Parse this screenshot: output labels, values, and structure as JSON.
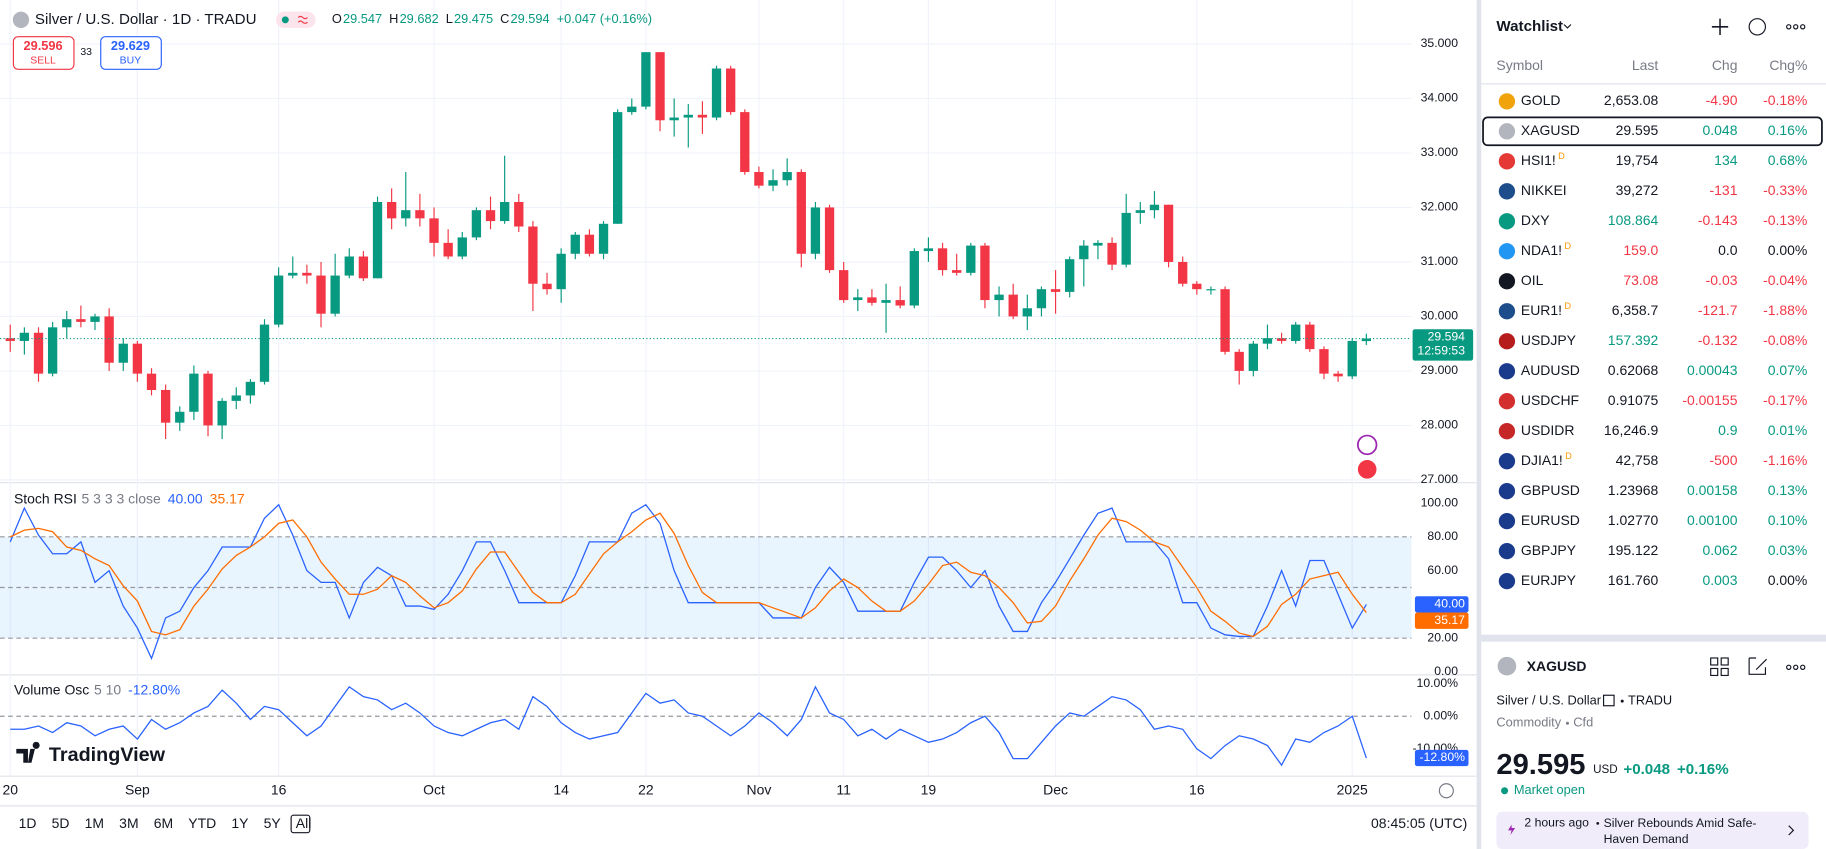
{
  "header": {
    "title": "Silver / U.S. Dollar · 1D · TRADU",
    "ohlc": [
      {
        "key": "O",
        "value": "29.547"
      },
      {
        "key": "H",
        "value": "29.682"
      },
      {
        "key": "L",
        "value": "29.475"
      },
      {
        "key": "C",
        "value": "29.594"
      }
    ],
    "change": "+0.047 (+0.16%)"
  },
  "trade": {
    "sell_price": "29.596",
    "sell": "SELL",
    "spread": "33",
    "buy_price": "29.629",
    "buy": "BUY"
  },
  "logo": "TradingView",
  "chart_data": [
    {
      "type": "candlestick",
      "up_color": "#089981",
      "down_color": "#f23645",
      "grid": true,
      "categories": [
        "20",
        null,
        null,
        null,
        null,
        null,
        null,
        null,
        null,
        "Sep",
        null,
        null,
        null,
        null,
        null,
        null,
        null,
        null,
        null,
        "16",
        null,
        null,
        null,
        null,
        null,
        null,
        null,
        null,
        null,
        null,
        "Oct",
        null,
        null,
        null,
        null,
        null,
        null,
        null,
        null,
        "14",
        null,
        null,
        null,
        null,
        null,
        "22",
        null,
        null,
        null,
        null,
        null,
        null,
        null,
        "Nov",
        null,
        null,
        null,
        null,
        null,
        "11",
        null,
        null,
        null,
        null,
        null,
        "19",
        null,
        null,
        null,
        null,
        null,
        null,
        null,
        null,
        "Dec",
        null,
        null,
        null,
        null,
        null,
        null,
        null,
        null,
        null,
        "16",
        null,
        null,
        null,
        null,
        null,
        null,
        null,
        null,
        null,
        null,
        "2025",
        null
      ],
      "open": [
        29.6,
        29.55,
        29.7,
        28.95,
        29.8,
        29.95,
        29.9,
        30.0,
        29.15,
        29.5,
        28.95,
        28.65,
        28.05,
        28.25,
        28.95,
        28.0,
        28.45,
        28.55,
        28.8,
        29.85,
        30.75,
        30.8,
        30.75,
        30.05,
        30.75,
        31.1,
        30.7,
        32.1,
        31.8,
        31.95,
        31.8,
        31.35,
        31.1,
        31.45,
        31.95,
        31.75,
        32.1,
        31.65,
        30.6,
        30.5,
        31.15,
        31.5,
        31.15,
        31.7,
        33.75,
        33.85,
        34.85,
        33.6,
        33.65,
        33.7,
        33.65,
        34.55,
        33.75,
        32.65,
        32.4,
        32.5,
        32.65,
        31.15,
        32.0,
        30.85,
        30.3,
        30.35,
        30.25,
        30.3,
        30.2,
        31.2,
        31.25,
        30.85,
        30.8,
        31.3,
        30.3,
        30.4,
        30.0,
        30.15,
        30.5,
        30.45,
        31.05,
        31.3,
        31.35,
        30.95,
        31.9,
        31.95,
        32.05,
        31.0,
        30.6,
        30.5,
        30.5,
        29.35,
        29.0,
        29.5,
        29.6,
        29.55,
        29.85,
        29.4,
        28.95,
        28.9,
        29.547
      ],
      "high": [
        29.85,
        29.8,
        29.8,
        29.9,
        30.1,
        30.2,
        30.05,
        30.15,
        29.6,
        29.55,
        29.05,
        28.75,
        28.35,
        29.1,
        29.0,
        28.5,
        28.7,
        28.85,
        29.95,
        30.9,
        31.1,
        30.95,
        31.0,
        31.15,
        31.25,
        31.2,
        32.2,
        32.35,
        32.65,
        32.25,
        32.0,
        31.6,
        31.55,
        32.0,
        32.2,
        32.95,
        32.25,
        31.75,
        30.8,
        31.25,
        31.55,
        31.6,
        31.75,
        33.8,
        34.0,
        34.85,
        34.85,
        34.0,
        33.9,
        33.95,
        34.6,
        34.6,
        33.8,
        32.75,
        32.7,
        32.9,
        32.7,
        32.1,
        32.05,
        31.0,
        30.5,
        30.5,
        30.6,
        30.55,
        31.25,
        31.45,
        31.35,
        31.15,
        31.35,
        31.35,
        30.55,
        30.6,
        30.4,
        30.55,
        30.85,
        31.1,
        31.4,
        31.4,
        31.45,
        32.25,
        32.1,
        32.3,
        32.05,
        31.1,
        30.65,
        30.55,
        30.55,
        29.4,
        29.55,
        29.85,
        29.7,
        29.9,
        29.9,
        29.45,
        29.0,
        29.6,
        29.682
      ],
      "low": [
        29.35,
        29.3,
        28.8,
        28.9,
        29.6,
        29.8,
        29.75,
        29.0,
        29.0,
        28.8,
        28.55,
        27.75,
        27.9,
        28.1,
        27.8,
        27.75,
        28.3,
        28.4,
        28.75,
        29.8,
        30.7,
        30.6,
        29.8,
        30.0,
        30.7,
        30.65,
        30.7,
        31.6,
        31.65,
        31.65,
        31.1,
        31.05,
        31.05,
        31.4,
        31.6,
        31.7,
        31.55,
        30.1,
        30.4,
        30.25,
        31.05,
        31.1,
        31.05,
        31.7,
        33.7,
        33.8,
        33.4,
        33.3,
        33.1,
        33.35,
        33.6,
        33.7,
        32.6,
        32.35,
        32.3,
        32.4,
        30.9,
        31.05,
        30.8,
        30.25,
        30.1,
        30.2,
        29.7,
        30.15,
        30.15,
        31.0,
        30.75,
        30.75,
        30.75,
        30.15,
        30.0,
        29.95,
        29.75,
        30.0,
        30.05,
        30.35,
        30.55,
        31.05,
        30.85,
        30.9,
        31.7,
        31.8,
        30.9,
        30.55,
        30.4,
        30.4,
        29.3,
        28.75,
        28.9,
        29.4,
        29.5,
        29.5,
        29.35,
        28.85,
        28.8,
        28.85,
        29.475
      ],
      "close": [
        29.55,
        29.7,
        28.95,
        29.8,
        29.95,
        29.9,
        30.0,
        29.15,
        29.5,
        28.95,
        28.65,
        28.05,
        28.25,
        28.95,
        28.0,
        28.45,
        28.55,
        28.8,
        29.85,
        30.75,
        30.8,
        30.75,
        30.05,
        30.75,
        31.1,
        30.7,
        32.1,
        31.8,
        31.95,
        31.8,
        31.35,
        31.1,
        31.45,
        31.95,
        31.75,
        32.1,
        31.65,
        30.6,
        30.5,
        31.15,
        31.5,
        31.15,
        31.7,
        33.75,
        33.85,
        34.85,
        33.6,
        33.65,
        33.7,
        33.65,
        34.55,
        33.75,
        32.65,
        32.4,
        32.5,
        32.65,
        31.15,
        32.0,
        30.85,
        30.3,
        30.35,
        30.25,
        30.3,
        30.2,
        31.2,
        31.25,
        30.85,
        30.8,
        31.3,
        30.3,
        30.4,
        30.0,
        30.15,
        30.5,
        30.45,
        31.05,
        31.3,
        31.35,
        30.95,
        31.9,
        31.95,
        32.05,
        31.0,
        30.6,
        30.5,
        30.5,
        29.35,
        29.0,
        29.5,
        29.6,
        29.55,
        29.85,
        29.4,
        28.95,
        28.9,
        29.55,
        29.594
      ],
      "ylim": [
        26.98,
        35.7
      ],
      "yticks": [
        {
          "value": 27,
          "label": "27.000"
        },
        {
          "value": 28,
          "label": "28.000"
        },
        {
          "value": 29,
          "label": "29.000"
        },
        {
          "value": 30,
          "label": "30.000"
        },
        {
          "value": 31,
          "label": "31.000"
        },
        {
          "value": 32,
          "label": "32.000"
        },
        {
          "value": 33,
          "label": "33.000"
        },
        {
          "value": 34,
          "label": "34.000"
        },
        {
          "value": 35,
          "label": "35.000"
        }
      ],
      "price_tag": "29.594",
      "countdown": "12:59:53"
    },
    {
      "type": "line",
      "title": "Stoch RSI",
      "params": "5 3 3 3 close",
      "ylim": [
        -1.4,
        111
      ],
      "yticks": [
        {
          "value": 0,
          "label": "0.00"
        },
        {
          "value": 20,
          "label": "20.00"
        },
        {
          "value": 60,
          "label": "60.00"
        },
        {
          "value": 80,
          "label": "80.00"
        },
        {
          "value": 100,
          "label": "100.00"
        }
      ],
      "band": [
        20,
        80
      ],
      "hlines": [
        80,
        50,
        20
      ],
      "series": [
        {
          "name": "K",
          "color": "#2962ff",
          "legend_value": "40.00",
          "values": [
            77,
            97,
            81,
            70,
            70,
            77,
            53,
            60,
            39,
            26,
            8,
            32,
            36,
            50,
            60,
            74,
            74,
            74,
            91,
            99,
            81,
            60,
            53,
            53,
            32,
            53,
            62,
            57,
            39,
            39,
            37,
            46,
            60,
            77,
            77,
            60,
            41,
            41,
            41,
            41,
            57,
            77,
            77,
            77,
            94,
            99,
            88,
            60,
            41,
            41,
            41,
            41,
            41,
            41,
            32,
            32,
            32,
            50,
            62,
            53,
            36,
            36,
            36,
            36,
            53,
            68,
            68,
            60,
            50,
            60,
            39,
            24,
            24,
            41,
            53,
            67,
            81,
            94,
            97,
            77,
            77,
            77,
            67,
            41,
            41,
            26,
            22,
            21,
            21,
            39,
            60,
            39,
            66,
            66,
            46,
            26,
            40
          ]
        },
        {
          "name": "D",
          "color": "#ff6d00",
          "legend_value": "35.17",
          "values": [
            80,
            84,
            85,
            83,
            74,
            72,
            67,
            63,
            51,
            42,
            24,
            22,
            25,
            39,
            49,
            61,
            69,
            74,
            80,
            88,
            90,
            80,
            65,
            55,
            46,
            46,
            49,
            57,
            53,
            45,
            38,
            41,
            48,
            61,
            71,
            71,
            59,
            47,
            41,
            41,
            46,
            58,
            70,
            77,
            83,
            90,
            94,
            82,
            63,
            47,
            41,
            41,
            41,
            41,
            38,
            35,
            32,
            38,
            48,
            55,
            50,
            42,
            36,
            36,
            42,
            52,
            63,
            65,
            59,
            57,
            50,
            41,
            29,
            30,
            39,
            54,
            67,
            81,
            91,
            89,
            84,
            77,
            74,
            62,
            50,
            36,
            30,
            23,
            21,
            27,
            40,
            46,
            55,
            57,
            59,
            46,
            35.17
          ]
        }
      ]
    },
    {
      "type": "line",
      "title": "Volume Osc",
      "params": "5 10",
      "ylim": [
        -18.2,
        12.5
      ],
      "yticks": [
        {
          "value": -10,
          "label": "-10.00%"
        },
        {
          "value": 0,
          "label": "0.00%"
        },
        {
          "value": 10,
          "label": "10.00%"
        }
      ],
      "hlines": [
        0
      ],
      "series": [
        {
          "name": "Volume Osc",
          "color": "#2962ff",
          "legend_value": "-12.80%",
          "values": [
            -4,
            -4,
            -3,
            -5,
            -2,
            -3,
            -6,
            -4,
            -3,
            -7,
            -1,
            -4,
            -2,
            1,
            3,
            8,
            4,
            -1,
            3,
            2,
            -2,
            -6,
            -3,
            3,
            9,
            6,
            5,
            2,
            4,
            1,
            -3,
            -5,
            -6,
            -4,
            -2,
            -1,
            -4,
            6,
            3,
            -2,
            -5,
            -7,
            -6,
            -5,
            1,
            7,
            4,
            5,
            1,
            0,
            -3,
            -6,
            -3,
            1,
            -2,
            -6,
            -1,
            9,
            1,
            -1,
            -6,
            -4,
            -7,
            -4,
            -6,
            -8,
            -7,
            -5,
            -2,
            0,
            -5,
            -13,
            -13,
            -8,
            -3,
            1,
            0,
            3,
            6,
            5,
            2,
            -4,
            -3,
            -4,
            -10,
            -13,
            -9,
            -6,
            -7,
            -9,
            -15,
            -7,
            -8,
            -5,
            -3,
            0,
            -12.8
          ]
        }
      ]
    }
  ],
  "toolbar": {
    "ranges": [
      "1D",
      "5D",
      "1M",
      "3M",
      "6M",
      "YTD",
      "1Y",
      "5Y",
      "All"
    ],
    "clock": "08:45:05 (UTC)"
  },
  "watchlist": {
    "title": "Watchlist",
    "columns": [
      "Symbol",
      "Last",
      "Chg",
      "Chg%"
    ],
    "selected": 1,
    "rows": [
      {
        "symbol": "GOLD",
        "last": "2,653.08",
        "chg": "-4.90",
        "chg_pct": "-0.18%",
        "icon": "#f0a30a",
        "color": "#131722"
      },
      {
        "symbol": "XAGUSD",
        "last": "29.595",
        "chg": "0.048",
        "chg_pct": "0.16%",
        "icon": "#b2b5be",
        "color": "#131722"
      },
      {
        "symbol": "HSI1!",
        "flag": "D",
        "last": "19,754",
        "chg": "134",
        "chg_pct": "0.68%",
        "icon": "#e53935",
        "color": "#131722"
      },
      {
        "symbol": "NIKKEI",
        "last": "39,272",
        "chg": "-131",
        "chg_pct": "-0.33%",
        "icon": "#1e4d8c",
        "color": "#131722"
      },
      {
        "symbol": "DXY",
        "last": "108.864",
        "chg": "-0.143",
        "chg_pct": "-0.13%",
        "icon": "#089981",
        "color": "#089981"
      },
      {
        "symbol": "NDA1!",
        "flag": "D",
        "last": "159.0",
        "chg": "0.0",
        "chg_pct": "0.00%",
        "icon": "#2196f3",
        "color": "#f23645"
      },
      {
        "symbol": "OIL",
        "last": "73.08",
        "chg": "-0.03",
        "chg_pct": "-0.04%",
        "icon": "#131722",
        "color": "#f23645"
      },
      {
        "symbol": "EUR1!",
        "flag": "D",
        "last": "6,358.7",
        "chg": "-121.7",
        "chg_pct": "-1.88%",
        "icon": "#1e4d8c",
        "color": "#131722"
      },
      {
        "symbol": "USDJPY",
        "last": "157.392",
        "chg": "-0.132",
        "chg_pct": "-0.08%",
        "icon": "#b71c1c",
        "color": "#089981"
      },
      {
        "symbol": "AUDUSD",
        "last": "0.62068",
        "chg": "0.00043",
        "chg_pct": "0.07%",
        "icon": "#1a3a8c",
        "color": "#131722"
      },
      {
        "symbol": "USDCHF",
        "last": "0.91075",
        "chg": "-0.00155",
        "chg_pct": "-0.17%",
        "icon": "#d32f2f",
        "color": "#131722"
      },
      {
        "symbol": "USDIDR",
        "last": "16,246.9",
        "chg": "0.9",
        "chg_pct": "0.01%",
        "icon": "#c62828",
        "color": "#131722"
      },
      {
        "symbol": "DJIA1!",
        "flag": "D",
        "last": "42,758",
        "chg": "-500",
        "chg_pct": "-1.16%",
        "icon": "#1a3a8c",
        "color": "#131722"
      },
      {
        "symbol": "GBPUSD",
        "last": "1.23968",
        "chg": "0.00158",
        "chg_pct": "0.13%",
        "icon": "#1a3a8c",
        "color": "#131722"
      },
      {
        "symbol": "EURUSD",
        "last": "1.02770",
        "chg": "0.00100",
        "chg_pct": "0.10%",
        "icon": "#1a3a8c",
        "color": "#131722"
      },
      {
        "symbol": "GBPJPY",
        "last": "195.122",
        "chg": "0.062",
        "chg_pct": "0.03%",
        "icon": "#1a3a8c",
        "color": "#131722"
      },
      {
        "symbol": "EURJPY",
        "last": "161.760",
        "chg": "0.003",
        "chg_pct": "0.00%",
        "icon": "#1a3a8c",
        "color": "#131722"
      }
    ]
  },
  "details": {
    "symbol": "XAGUSD",
    "name": "Silver / U.S. Dollar",
    "exchange": "TRADU",
    "category": "Commodity",
    "kind": "Cfd",
    "price": "29.595",
    "currency": "USD",
    "change": "+0.048",
    "change_pct": "+0.16%",
    "status": "Market open",
    "news_time": "2 hours ago",
    "news_title": "Silver Rebounds Amid Safe-Haven Demand"
  }
}
